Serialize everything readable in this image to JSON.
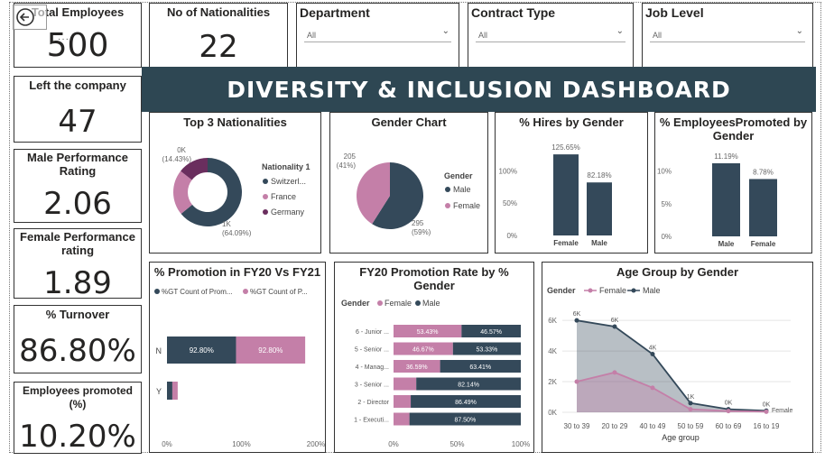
{
  "title": "DIVERSITY & INCLUSION DASHBOARD",
  "kpis": {
    "total_employees": {
      "label": "Total Employees",
      "value": "500"
    },
    "nationalities": {
      "label": "No of Nationalities",
      "value": "22"
    },
    "left_company": {
      "label": "Left the company",
      "value": "47"
    },
    "male_perf": {
      "label": "Male Performance Rating",
      "value": "2.06"
    },
    "female_perf": {
      "label": "Female Performance rating",
      "value": "1.89"
    },
    "turnover": {
      "label": "% Turnover",
      "value": "86.80%"
    },
    "promoted": {
      "label": "Employees promoted (%)",
      "value": "10.20%"
    }
  },
  "slicers": [
    {
      "label": "Department",
      "value": "All"
    },
    {
      "label": "Contract Type",
      "value": "All"
    },
    {
      "label": "Job Level",
      "value": "All"
    }
  ],
  "colors": {
    "dark": "#34495a",
    "pink": "#c47fa8",
    "purple": "#6a2e5e",
    "banner": "#2e4753"
  },
  "chart_data": [
    {
      "type": "pie",
      "title": "Top 3 Nationalities",
      "legend_title": "Nationality 1",
      "legend_placement": "right",
      "slices": [
        {
          "name": "Switzerl...",
          "value": 64.09,
          "label_top": "1K",
          "label_bottom": "(64.09%)"
        },
        {
          "name": "France",
          "value": 21.48,
          "label_top": "",
          "label_bottom": ""
        },
        {
          "name": "Germany",
          "value": 14.43,
          "label_top": "0K",
          "label_bottom": "(14.43%)"
        }
      ]
    },
    {
      "type": "pie",
      "title": "Gender Chart",
      "legend_title": "Gender",
      "legend_placement": "right",
      "slices": [
        {
          "name": "Male",
          "value": 295,
          "label_top": "295",
          "label_bottom": "(59%)"
        },
        {
          "name": "Female",
          "value": 205,
          "label_top": "205",
          "label_bottom": "(41%)"
        }
      ]
    },
    {
      "type": "bar",
      "title": "% Hires by Gender",
      "categories": [
        "Female",
        "Male"
      ],
      "values": [
        125.65,
        82.18
      ],
      "labels": [
        "125.65%",
        "82.18%"
      ],
      "yticks": [
        "100%",
        "50%",
        "0%"
      ],
      "ylim": [
        0,
        137
      ]
    },
    {
      "type": "bar",
      "title": "% EmployeesPromoted by Gender",
      "categories": [
        "Male",
        "Female"
      ],
      "values": [
        11.19,
        8.78
      ],
      "labels": [
        "11.19%",
        "8.78%"
      ],
      "yticks": [
        "10%",
        "5%",
        "0%"
      ],
      "ylim": [
        0,
        13.4
      ]
    },
    {
      "type": "bar",
      "title": "% Promotion in FY20 Vs FY21",
      "orientation": "horizontal",
      "stacked": true,
      "categories": [
        "N",
        "Y"
      ],
      "series": [
        {
          "name": "%GT Count of Prom...",
          "values": [
            92.8,
            7.2
          ],
          "labels": [
            "92.80%",
            ""
          ]
        },
        {
          "name": "%GT Count of P...",
          "values": [
            92.8,
            7.2
          ],
          "labels": [
            "92.80%",
            ""
          ]
        }
      ],
      "xticks": [
        "0%",
        "100%",
        "200%"
      ],
      "xlim": [
        0,
        200
      ]
    },
    {
      "type": "bar",
      "title": "FY20 Promotion Rate by % Gender",
      "orientation": "horizontal",
      "stacked": true,
      "legend_title": "Gender",
      "categories": [
        "6 - Junior ...",
        "5 - Senior ...",
        "4 - Manag...",
        "3 - Senior ...",
        "2 - Director",
        "1 - Executi..."
      ],
      "series": [
        {
          "name": "Female",
          "values": [
            53.43,
            46.67,
            36.59,
            17.86,
            13.51,
            12.5
          ],
          "labels": [
            "53.43%",
            "46.67%",
            "36.59%",
            "",
            "",
            ""
          ]
        },
        {
          "name": "Male",
          "values": [
            46.57,
            53.33,
            63.41,
            82.14,
            86.49,
            87.5
          ],
          "labels": [
            "46.57%",
            "53.33%",
            "63.41%",
            "82.14%",
            "86.49%",
            "87.50%"
          ]
        }
      ],
      "xticks": [
        "0%",
        "50%",
        "100%"
      ],
      "xlim": [
        0,
        100
      ]
    },
    {
      "type": "area",
      "title": "Age Group by Gender",
      "legend_title": "Gender",
      "xlabel": "Age group",
      "categories": [
        "30 to 39",
        "20 to 29",
        "40 to 49",
        "50 to 59",
        "60 to 69",
        "16 to 19"
      ],
      "series": [
        {
          "name": "Female",
          "values": [
            2000,
            2600,
            1600,
            200,
            80,
            40
          ],
          "labels": [
            "",
            "",
            "",
            "",
            "",
            ""
          ]
        },
        {
          "name": "Male",
          "values": [
            6000,
            5600,
            3800,
            600,
            200,
            100
          ],
          "labels": [
            "6K",
            "6K",
            "4K",
            "1K",
            "0K",
            "0K"
          ]
        }
      ],
      "end_label": "Female",
      "yticks": [
        "6K",
        "4K",
        "2K",
        "0K"
      ],
      "ylim": [
        0,
        6600
      ]
    }
  ]
}
